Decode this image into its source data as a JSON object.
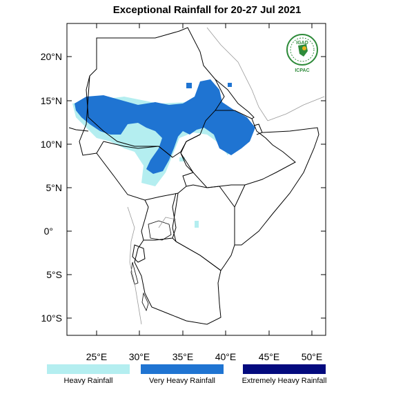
{
  "title": "Exceptional Rainfall for 20-27 Jul 2021",
  "logo": {
    "name": "IGAD",
    "caption": "ICPAC",
    "color": "#2e8b3a",
    "accent": "#e8b21f"
  },
  "axes": {
    "lat_labels": [
      "20°N",
      "15°N",
      "10°N",
      "5°N",
      "0°",
      "5°S",
      "10°S"
    ],
    "lon_labels": [
      "25°E",
      "30°E",
      "35°E",
      "40°E",
      "45°E",
      "50°E"
    ]
  },
  "legend": [
    {
      "label": "Heavy Rainfall",
      "color": "#b4eef0"
    },
    {
      "label": "Very Heavy Rainfall",
      "color": "#1f74d2"
    },
    {
      "label": "Extremely Heavy Rainfall",
      "color": "#030a7e"
    }
  ]
}
